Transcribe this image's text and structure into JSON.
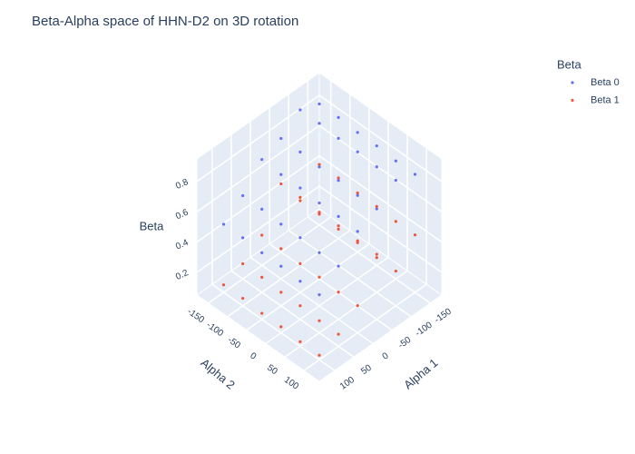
{
  "chart_data": {
    "type": "scatter3d",
    "title": "Beta-Alpha space of HHN-D2 on 3D rotation",
    "xlabel": "Alpha 1",
    "ylabel": "Alpha 2",
    "zlabel": "Beta",
    "legend_title": "Beta",
    "xlim": [
      -180,
      140
    ],
    "ylim": [
      -180,
      140
    ],
    "zlim": [
      0.05,
      0.95
    ],
    "xticks": [
      -150,
      -100,
      -50,
      0,
      50,
      100
    ],
    "yticks": [
      -150,
      -100,
      -50,
      0,
      50,
      100
    ],
    "zticks": [
      0.2,
      0.4,
      0.6,
      0.8
    ],
    "series": [
      {
        "name": "Beta 0",
        "color": "#636efa",
        "x": [
          -150,
          -150,
          -150,
          -150,
          -150,
          -150,
          -100,
          -100,
          -100,
          -100,
          -100,
          -100,
          -50,
          -50,
          -50,
          -50,
          -50,
          -50,
          0,
          0,
          0,
          0,
          0,
          0,
          50,
          50,
          50,
          50,
          50,
          50,
          100,
          100,
          100,
          100,
          100,
          100
        ],
        "y": [
          -150,
          -100,
          -50,
          0,
          50,
          100,
          -150,
          -100,
          -50,
          0,
          50,
          100,
          -150,
          -100,
          -50,
          0,
          50,
          100,
          -150,
          -100,
          -50,
          0,
          50,
          100,
          -150,
          -100,
          -50,
          0,
          50,
          100,
          -150,
          -100,
          -50,
          0,
          50,
          100
        ],
        "z": [
          0.85,
          0.85,
          0.84,
          0.84,
          0.83,
          0.83,
          0.9,
          0.9,
          0.89,
          0.89,
          0.88,
          0.88,
          0.8,
          0.8,
          0.79,
          0.79,
          0.78,
          0.78,
          0.75,
          0.74,
          0.74,
          0.73,
          0.73,
          0.72,
          0.6,
          0.6,
          0.59,
          0.59,
          0.58,
          0.58,
          0.5,
          0.5,
          0.49,
          0.49,
          0.48,
          0.48
        ]
      },
      {
        "name": "Beta 1",
        "color": "#ef553b",
        "x": [
          -150,
          -150,
          -150,
          -150,
          -150,
          -150,
          -100,
          -100,
          -100,
          -100,
          -100,
          -100,
          -50,
          -50,
          -50,
          -50,
          -50,
          -50,
          0,
          0,
          0,
          0,
          0,
          0,
          50,
          50,
          50,
          50,
          50,
          50,
          100,
          100,
          100,
          100,
          100,
          100
        ],
        "y": [
          -150,
          -100,
          -50,
          0,
          50,
          100,
          -150,
          -100,
          -50,
          0,
          50,
          100,
          -150,
          -100,
          -50,
          0,
          50,
          100,
          -150,
          -100,
          -50,
          0,
          50,
          100,
          -150,
          -100,
          -50,
          0,
          50,
          100,
          -150,
          -100,
          -50,
          0,
          50,
          100
        ],
        "z": [
          0.45,
          0.45,
          0.44,
          0.44,
          0.43,
          0.43,
          0.3,
          0.3,
          0.29,
          0.29,
          0.28,
          0.28,
          0.5,
          0.5,
          0.49,
          0.49,
          0.48,
          0.48,
          0.25,
          0.25,
          0.24,
          0.24,
          0.23,
          0.23,
          0.15,
          0.15,
          0.14,
          0.14,
          0.13,
          0.13,
          0.1,
          0.1,
          0.09,
          0.09,
          0.08,
          0.08
        ]
      }
    ]
  }
}
